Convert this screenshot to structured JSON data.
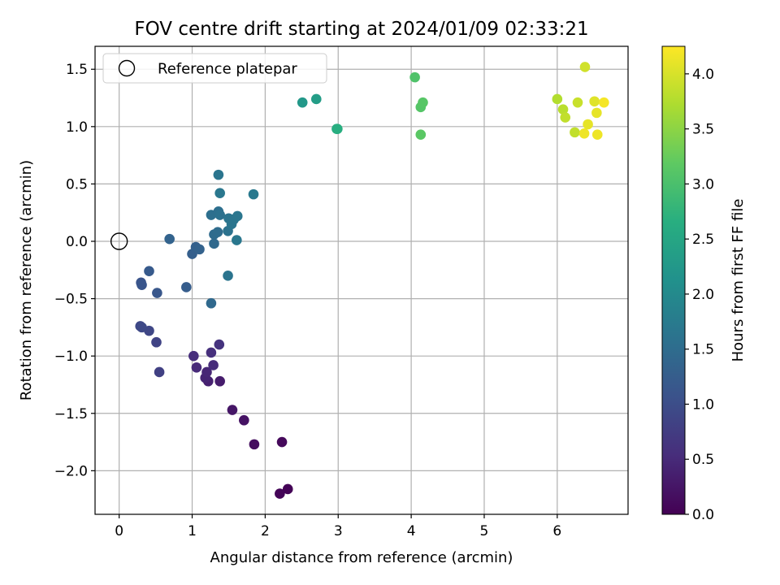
{
  "chart_data": {
    "type": "scatter",
    "title": "FOV centre drift starting at 2024/01/09 02:33:21",
    "xlabel": "Angular distance from reference (arcmin)",
    "ylabel": "Rotation from reference (arcmin)",
    "xlim": [
      -0.33,
      6.97
    ],
    "ylim": [
      -2.38,
      1.7
    ],
    "xticks": [
      0,
      1,
      2,
      3,
      4,
      5,
      6
    ],
    "yticks": [
      1.5,
      1.0,
      0.5,
      0.0,
      -0.5,
      -1.0,
      -1.5,
      -2.0
    ],
    "xtick_labels": [
      "0",
      "1",
      "2",
      "3",
      "4",
      "5",
      "6"
    ],
    "ytick_labels": [
      "1.5",
      "1.0",
      "0.5",
      "0.0",
      "−0.5",
      "−1.0",
      "−1.5",
      "−2.0"
    ],
    "grid": true,
    "legend": {
      "position": "top-left",
      "entries": [
        "Reference platepar"
      ]
    },
    "reference_point": {
      "x": 0,
      "y": 0
    },
    "colorbar": {
      "label": "Hours from first FF file",
      "range": [
        0.0,
        4.25
      ],
      "ticks": [
        0.0,
        0.5,
        1.0,
        1.5,
        2.0,
        2.5,
        3.0,
        3.5,
        4.0
      ],
      "tick_labels": [
        "0.0",
        "0.5",
        "1.0",
        "1.5",
        "2.0",
        "2.5",
        "3.0",
        "3.5",
        "4.0"
      ],
      "colormap": "viridis"
    },
    "points": [
      {
        "x": 2.31,
        "y": -2.16,
        "t": 0.03
      },
      {
        "x": 2.2,
        "y": -2.2,
        "t": 0.05
      },
      {
        "x": 2.23,
        "y": -1.75,
        "t": 0.1
      },
      {
        "x": 1.85,
        "y": -1.77,
        "t": 0.15
      },
      {
        "x": 1.71,
        "y": -1.56,
        "t": 0.2
      },
      {
        "x": 1.55,
        "y": -1.47,
        "t": 0.25
      },
      {
        "x": 1.38,
        "y": -1.22,
        "t": 0.33
      },
      {
        "x": 1.22,
        "y": -1.22,
        "t": 0.38
      },
      {
        "x": 1.18,
        "y": -1.19,
        "t": 0.42
      },
      {
        "x": 1.2,
        "y": -1.14,
        "t": 0.45
      },
      {
        "x": 1.06,
        "y": -1.1,
        "t": 0.5
      },
      {
        "x": 1.29,
        "y": -1.08,
        "t": 0.52
      },
      {
        "x": 1.02,
        "y": -1.0,
        "t": 0.55
      },
      {
        "x": 1.26,
        "y": -0.97,
        "t": 0.58
      },
      {
        "x": 1.37,
        "y": -0.9,
        "t": 0.62
      },
      {
        "x": 0.55,
        "y": -1.14,
        "t": 0.8
      },
      {
        "x": 0.51,
        "y": -0.88,
        "t": 0.85
      },
      {
        "x": 0.41,
        "y": -0.78,
        "t": 0.9
      },
      {
        "x": 0.29,
        "y": -0.74,
        "t": 0.92
      },
      {
        "x": 0.31,
        "y": -0.75,
        "t": 0.94
      },
      {
        "x": 0.3,
        "y": -0.36,
        "t": 1.1
      },
      {
        "x": 0.31,
        "y": -0.38,
        "t": 1.12
      },
      {
        "x": 0.52,
        "y": -0.45,
        "t": 1.15
      },
      {
        "x": 0.41,
        "y": -0.26,
        "t": 1.2
      },
      {
        "x": 0.92,
        "y": -0.4,
        "t": 1.25
      },
      {
        "x": 1.0,
        "y": -0.11,
        "t": 1.28
      },
      {
        "x": 1.05,
        "y": -0.05,
        "t": 1.3
      },
      {
        "x": 1.1,
        "y": -0.07,
        "t": 1.32
      },
      {
        "x": 0.69,
        "y": 0.02,
        "t": 1.35
      },
      {
        "x": 1.26,
        "y": -0.54,
        "t": 1.45
      },
      {
        "x": 1.3,
        "y": -0.02,
        "t": 1.45
      },
      {
        "x": 1.3,
        "y": 0.06,
        "t": 1.48
      },
      {
        "x": 1.35,
        "y": 0.08,
        "t": 1.5
      },
      {
        "x": 1.26,
        "y": 0.23,
        "t": 1.55
      },
      {
        "x": 1.36,
        "y": 0.26,
        "t": 1.55
      },
      {
        "x": 1.38,
        "y": 0.23,
        "t": 1.58
      },
      {
        "x": 1.49,
        "y": 0.09,
        "t": 1.6
      },
      {
        "x": 1.5,
        "y": 0.2,
        "t": 1.62
      },
      {
        "x": 1.54,
        "y": 0.15,
        "t": 1.64
      },
      {
        "x": 1.57,
        "y": 0.19,
        "t": 1.65
      },
      {
        "x": 1.62,
        "y": 0.22,
        "t": 1.66
      },
      {
        "x": 1.61,
        "y": 0.01,
        "t": 1.68
      },
      {
        "x": 1.49,
        "y": -0.3,
        "t": 1.62
      },
      {
        "x": 1.36,
        "y": 0.58,
        "t": 1.65
      },
      {
        "x": 1.38,
        "y": 0.42,
        "t": 1.68
      },
      {
        "x": 1.84,
        "y": 0.41,
        "t": 1.72
      },
      {
        "x": 2.51,
        "y": 1.21,
        "t": 2.25
      },
      {
        "x": 2.7,
        "y": 1.24,
        "t": 2.35
      },
      {
        "x": 2.98,
        "y": 0.98,
        "t": 2.6
      },
      {
        "x": 2.99,
        "y": 0.98,
        "t": 2.65
      },
      {
        "x": 4.05,
        "y": 1.43,
        "t": 3.05
      },
      {
        "x": 4.13,
        "y": 1.17,
        "t": 3.1
      },
      {
        "x": 4.16,
        "y": 1.21,
        "t": 3.12
      },
      {
        "x": 4.13,
        "y": 0.93,
        "t": 3.15
      },
      {
        "x": 6.0,
        "y": 1.24,
        "t": 3.75
      },
      {
        "x": 6.08,
        "y": 1.15,
        "t": 3.8
      },
      {
        "x": 6.11,
        "y": 1.08,
        "t": 3.85
      },
      {
        "x": 6.24,
        "y": 0.95,
        "t": 3.85
      },
      {
        "x": 6.28,
        "y": 1.21,
        "t": 3.9
      },
      {
        "x": 6.38,
        "y": 1.52,
        "t": 3.95
      },
      {
        "x": 6.42,
        "y": 1.02,
        "t": 4.1
      },
      {
        "x": 6.37,
        "y": 0.94,
        "t": 4.15
      },
      {
        "x": 6.51,
        "y": 1.22,
        "t": 4.05
      },
      {
        "x": 6.54,
        "y": 1.12,
        "t": 4.1
      },
      {
        "x": 6.55,
        "y": 0.93,
        "t": 4.15
      },
      {
        "x": 6.64,
        "y": 1.21,
        "t": 4.2
      }
    ]
  }
}
